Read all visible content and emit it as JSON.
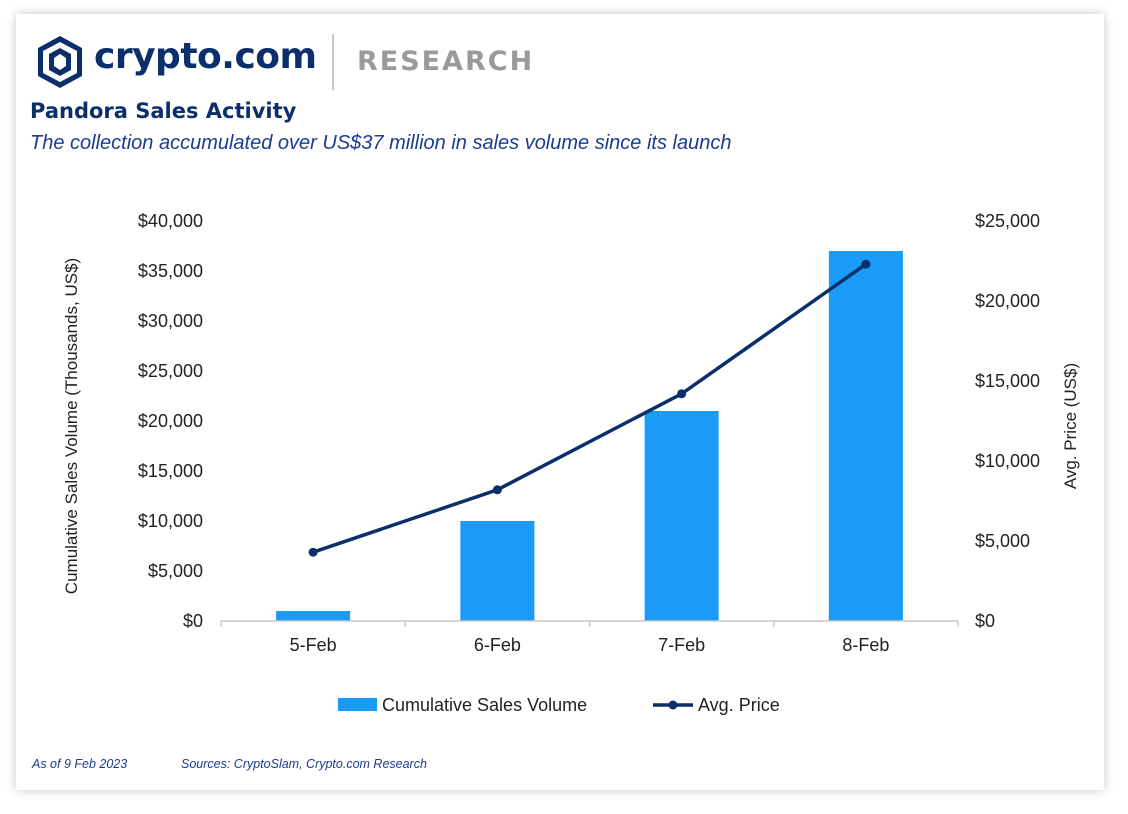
{
  "header": {
    "brand": "crypto.com",
    "section": "RESEARCH",
    "title": "Pandora Sales Activity",
    "subtitle": "The collection accumulated over US$37 million in sales volume since its launch"
  },
  "footer": {
    "as_of": "As of 9 Feb 2023",
    "sources": "Sources: CryptoSlam, Crypto.com Research"
  },
  "colors": {
    "bar": "#1a9bf8",
    "line": "#0b2f6b",
    "axis": "#c8c8c8",
    "text": "#222222"
  },
  "chart_data": {
    "type": "bar",
    "categories": [
      "5-Feb",
      "6-Feb",
      "7-Feb",
      "8-Feb"
    ],
    "series": [
      {
        "name": "Cumulative Sales Volume",
        "type": "bar",
        "axis": "left",
        "values": [
          1000,
          10000,
          21000,
          37000
        ]
      },
      {
        "name": "Avg. Price",
        "type": "line",
        "axis": "right",
        "values": [
          4300,
          8200,
          14200,
          22300
        ]
      }
    ],
    "ylabel": "Cumulative Sales Volume (Thousands, US$)",
    "y2label": "Avg. Price (US$)",
    "ylim": [
      0,
      40000
    ],
    "y2lim": [
      0,
      25000
    ],
    "yticks": [
      "$0",
      "$5,000",
      "$10,000",
      "$15,000",
      "$20,000",
      "$25,000",
      "$30,000",
      "$35,000",
      "$40,000"
    ],
    "y2ticks": [
      "$0",
      "$5,000",
      "$10,000",
      "$15,000",
      "$20,000",
      "$25,000"
    ],
    "grid": false,
    "legend_position": "bottom"
  }
}
